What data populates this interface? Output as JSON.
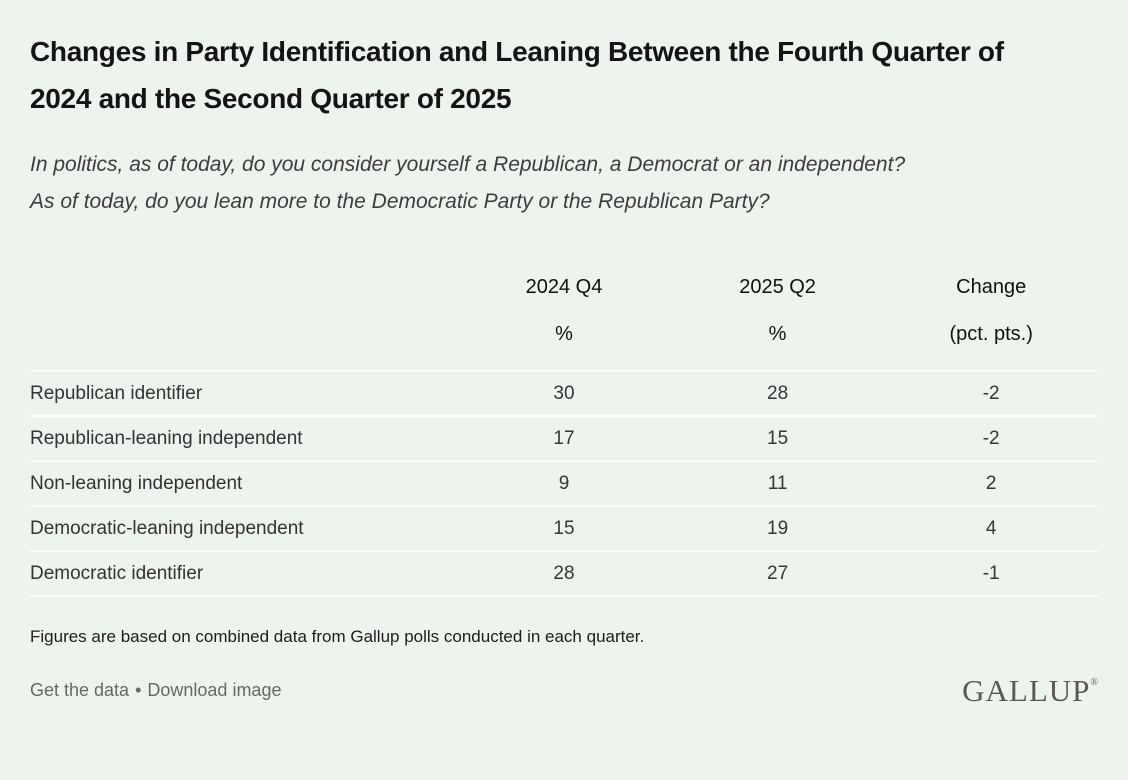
{
  "header": {
    "title": "Changes in Party Identification and Leaning Between the Fourth Quarter of 2024 and the Second Quarter of 2025",
    "questions": [
      "In politics, as of today, do you consider yourself a Republican, a Democrat or an independent?",
      "As of today, do you lean more to the Democratic Party or the Republican Party?"
    ]
  },
  "table": {
    "columns": [
      "",
      "2024 Q4",
      "2025 Q2",
      "Change"
    ],
    "units": [
      "",
      "%",
      "%",
      "(pct. pts.)"
    ],
    "rows": [
      [
        "Republican identifier",
        "30",
        "28",
        "-2"
      ],
      [
        "Republican-leaning independent",
        "17",
        "15",
        "-2"
      ],
      [
        "Non-leaning independent",
        "9",
        "11",
        "2"
      ],
      [
        "Democratic-leaning independent",
        "15",
        "19",
        "4"
      ],
      [
        "Democratic identifier",
        "28",
        "27",
        "-1"
      ]
    ]
  },
  "footnote": "Figures are based on combined data from Gallup polls conducted in each quarter.",
  "footer": {
    "get_data_label": "Get the data",
    "separator": "•",
    "download_label": "Download image",
    "logo_text": "GALLUP",
    "logo_registered": "®"
  },
  "colors": {
    "background": "#ecf4ed",
    "divider": "#fbfdfb",
    "title_text": "#141414",
    "question_text": "#3d3d3d",
    "body_text": "#363636",
    "link_text": "#666a66",
    "logo_text": "#5a5a52"
  },
  "chart_data": {
    "type": "table",
    "title": "Changes in Party Identification and Leaning Between the Fourth Quarter of 2024 and the Second Quarter of 2025",
    "subtitle": [
      "In politics, as of today, do you consider yourself a Republican, a Democrat or an independent?",
      "As of today, do you lean more to the Democratic Party or the Republican Party?"
    ],
    "categories": [
      "Republican identifier",
      "Republican-leaning independent",
      "Non-leaning independent",
      "Democratic-leaning independent",
      "Democratic identifier"
    ],
    "series": [
      {
        "name": "2024 Q4",
        "unit": "%",
        "values": [
          30,
          17,
          9,
          15,
          28
        ]
      },
      {
        "name": "2025 Q2",
        "unit": "%",
        "values": [
          28,
          15,
          11,
          19,
          27
        ]
      },
      {
        "name": "Change",
        "unit": "(pct. pts.)",
        "values": [
          -2,
          -2,
          2,
          4,
          -1
        ]
      }
    ],
    "footnote": "Figures are based on combined data from Gallup polls conducted in each quarter.",
    "source": "GALLUP"
  }
}
